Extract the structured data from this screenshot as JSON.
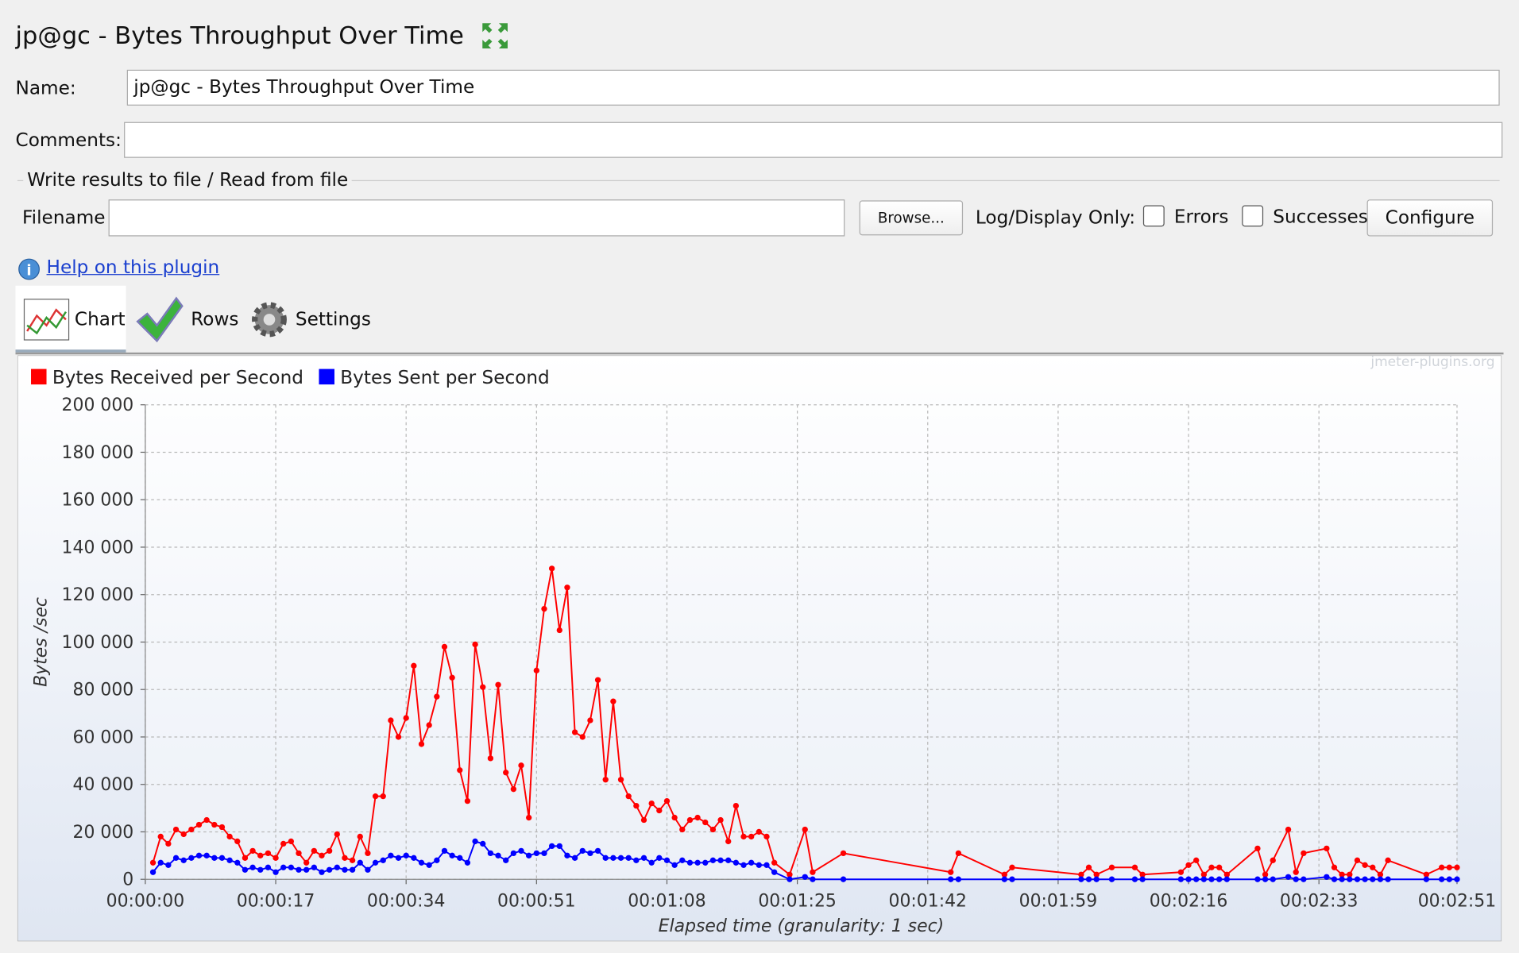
{
  "header": {
    "title": "jp@gc - Bytes Throughput Over Time"
  },
  "form": {
    "name_label": "Name:",
    "name_value": "jp@gc - Bytes Throughput Over Time",
    "comments_label": "Comments:",
    "file_section": "Write results to file / Read from file",
    "filename_label": "Filename",
    "browse_button": "Browse...",
    "log_display_label": "Log/Display Only:",
    "errors_label": "Errors",
    "successes_label": "Successes",
    "configure_button": "Configure",
    "help_link": "Help on this plugin"
  },
  "tabs": [
    "Chart",
    "Rows",
    "Settings"
  ],
  "watermark": "jmeter-plugins.org",
  "chart_data": {
    "type": "line",
    "y_label": "Bytes /sec",
    "x_label": "Elapsed time (granularity: 1 sec)",
    "xlim": [
      0,
      171
    ],
    "xticks": [
      {
        "value": 0,
        "label": "00:00:00"
      },
      {
        "value": 17,
        "label": "00:00:17"
      },
      {
        "value": 34,
        "label": "00:00:34"
      },
      {
        "value": 51,
        "label": "00:00:51"
      },
      {
        "value": 68,
        "label": "00:01:08"
      },
      {
        "value": 85,
        "label": "00:01:25"
      },
      {
        "value": 102,
        "label": "00:01:42"
      },
      {
        "value": 119,
        "label": "00:01:59"
      },
      {
        "value": 136,
        "label": "00:02:16"
      },
      {
        "value": 153,
        "label": "00:02:33"
      },
      {
        "value": 171,
        "label": "00:02:51"
      }
    ],
    "ylim": [
      0,
      200000
    ],
    "yticks": [
      {
        "value": 0,
        "label": "0"
      },
      {
        "value": 20000,
        "label": "20 000"
      },
      {
        "value": 40000,
        "label": "40 000"
      },
      {
        "value": 60000,
        "label": "60 000"
      },
      {
        "value": 80000,
        "label": "80 000"
      },
      {
        "value": 100000,
        "label": "100 000"
      },
      {
        "value": 120000,
        "label": "120 000"
      },
      {
        "value": 140000,
        "label": "140 000"
      },
      {
        "value": 160000,
        "label": "160 000"
      },
      {
        "value": 180000,
        "label": "180 000"
      },
      {
        "value": 200000,
        "label": "200 000"
      }
    ],
    "grid": true,
    "x": [
      1,
      2,
      3,
      4,
      5,
      6,
      7,
      8,
      9,
      10,
      11,
      12,
      13,
      14,
      15,
      16,
      17,
      18,
      19,
      20,
      21,
      22,
      23,
      24,
      25,
      26,
      27,
      28,
      29,
      30,
      31,
      32,
      33,
      34,
      35,
      36,
      37,
      38,
      39,
      40,
      41,
      42,
      43,
      44,
      45,
      46,
      47,
      48,
      49,
      50,
      51,
      52,
      53,
      54,
      55,
      56,
      57,
      58,
      59,
      60,
      61,
      62,
      63,
      64,
      65,
      66,
      67,
      68,
      69,
      70,
      71,
      72,
      73,
      74,
      75,
      76,
      77,
      78,
      79,
      80,
      81,
      82,
      84,
      86,
      87,
      91,
      105,
      106,
      112,
      113,
      122,
      123,
      124,
      126,
      129,
      130,
      135,
      136,
      137,
      138,
      139,
      140,
      141,
      145,
      146,
      147,
      149,
      150,
      151,
      154,
      155,
      156,
      157,
      158,
      159,
      160,
      161,
      162,
      167,
      169,
      170,
      171
    ],
    "series": [
      {
        "name": "Bytes Received per Second",
        "color": "#ff0000",
        "values": [
          7000,
          18000,
          15000,
          21000,
          19000,
          21000,
          23000,
          25000,
          23000,
          22000,
          18000,
          16000,
          9000,
          12000,
          10000,
          11000,
          9000,
          15000,
          16000,
          11000,
          7000,
          12000,
          10000,
          12000,
          19000,
          9000,
          8000,
          18000,
          11000,
          35000,
          35000,
          67000,
          60000,
          68000,
          90000,
          57000,
          65000,
          77000,
          98000,
          85000,
          46000,
          33000,
          99000,
          81000,
          51000,
          82000,
          45000,
          38000,
          48000,
          26000,
          88000,
          114000,
          131000,
          105000,
          123000,
          62000,
          60000,
          67000,
          84000,
          42000,
          75000,
          42000,
          35000,
          31000,
          25000,
          32000,
          29000,
          33000,
          26000,
          21000,
          25000,
          26000,
          24000,
          21000,
          25000,
          16000,
          31000,
          18000,
          18000,
          20000,
          18000,
          7000,
          2000,
          21000,
          3000,
          11000,
          3000,
          11000,
          2000,
          5000,
          2000,
          5000,
          2000,
          5000,
          5000,
          2000,
          3000,
          6000,
          8000,
          2000,
          5000,
          5000,
          2000,
          13000,
          2000,
          8000,
          21000,
          3000,
          11000,
          13000,
          5000,
          2000,
          2000,
          8000,
          6000,
          5000,
          2000,
          8000,
          2000,
          5000,
          5000,
          5000
        ]
      },
      {
        "name": "Bytes Sent per Second",
        "color": "#0000ff",
        "values": [
          3000,
          7000,
          6000,
          9000,
          8000,
          9000,
          10000,
          10000,
          9000,
          9000,
          8000,
          7000,
          4000,
          5000,
          4000,
          5000,
          3000,
          5000,
          5000,
          4000,
          4000,
          5000,
          3000,
          4000,
          5000,
          4000,
          4000,
          7000,
          4000,
          7000,
          8000,
          10000,
          9000,
          10000,
          9000,
          7000,
          6000,
          8000,
          12000,
          10000,
          9000,
          7000,
          16000,
          15000,
          11000,
          10000,
          8000,
          11000,
          12000,
          10000,
          11000,
          11000,
          14000,
          14000,
          10000,
          9000,
          12000,
          11000,
          12000,
          9000,
          9000,
          9000,
          9000,
          8000,
          9000,
          7000,
          9000,
          8000,
          6000,
          8000,
          7000,
          7000,
          7000,
          8000,
          8000,
          8000,
          7000,
          6000,
          7000,
          6000,
          6000,
          3000,
          0,
          1000,
          0,
          0,
          0,
          0,
          0,
          0,
          0,
          0,
          0,
          0,
          0,
          0,
          0,
          0,
          0,
          0,
          0,
          0,
          0,
          0,
          0,
          0,
          1000,
          0,
          0,
          1000,
          0,
          0,
          0,
          0,
          0,
          0,
          0,
          0,
          0,
          0,
          0,
          0
        ]
      }
    ]
  }
}
